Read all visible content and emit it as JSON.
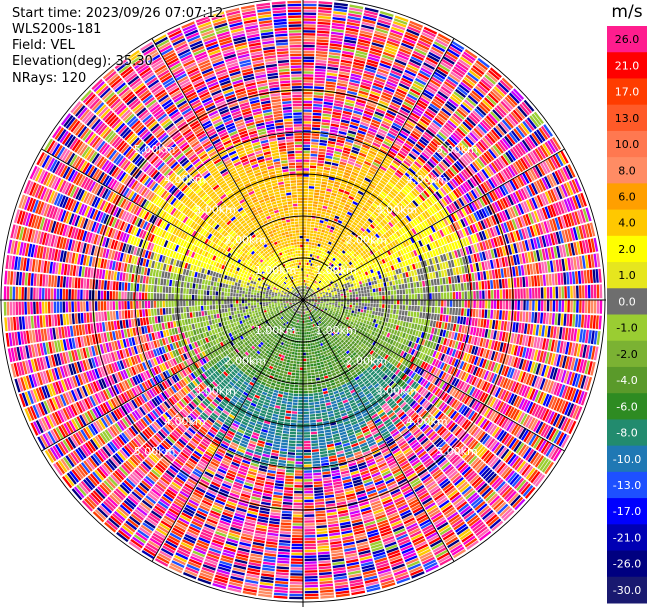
{
  "header": {
    "start_time": "Start time: 2023/09/26 07:07:12",
    "instrument": "WLS200s-181",
    "field": "Field: VEL",
    "elevation": "Elevation(deg): 35.30",
    "nrays": "NRays: 120"
  },
  "colorbar": {
    "unit": "m/s",
    "ticks": [
      "26.0",
      "21.0",
      "17.0",
      "13.0",
      "10.0",
      "8.0",
      "6.0",
      "4.0",
      "2.0",
      "1.0",
      "0.0",
      "-1.0",
      "-2.0",
      "-4.0",
      "-6.0",
      "-8.0",
      "-10.0",
      "-13.0",
      "-17.0",
      "-21.0",
      "-26.0",
      "-30.0"
    ],
    "colors": [
      "#ff1d8e",
      "#ff0000",
      "#ff3c00",
      "#ff5a28",
      "#ff7850",
      "#ff8c64",
      "#ff9f00",
      "#ffc800",
      "#ffff00",
      "#e6e61e",
      "#6e6e6e",
      "#9acd32",
      "#7bb233",
      "#5a9a2a",
      "#2e8b22",
      "#228b6e",
      "#1f78b4",
      "#1e50ff",
      "#0000ff",
      "#0000b4",
      "#000080",
      "#191970"
    ]
  },
  "chart_data": {
    "type": "heatmap",
    "projection": "polar",
    "n_rays": 120,
    "range_rings_km": [
      1.0,
      2.0,
      3.0,
      4.0,
      5.0
    ],
    "ring_labels": {
      "1.0": "1.00km",
      "2.0": "2.00km",
      "3.0": "3.00km",
      "4.0": "4.00km",
      "5.0": "5.00km"
    },
    "max_range_km": 7.2,
    "value_description": "Radial velocity (m/s); near range negative (green/blue) to south, positive (yellow/orange) to north, noisy random values beyond ~2 km",
    "clim": [
      -30,
      30
    ]
  }
}
